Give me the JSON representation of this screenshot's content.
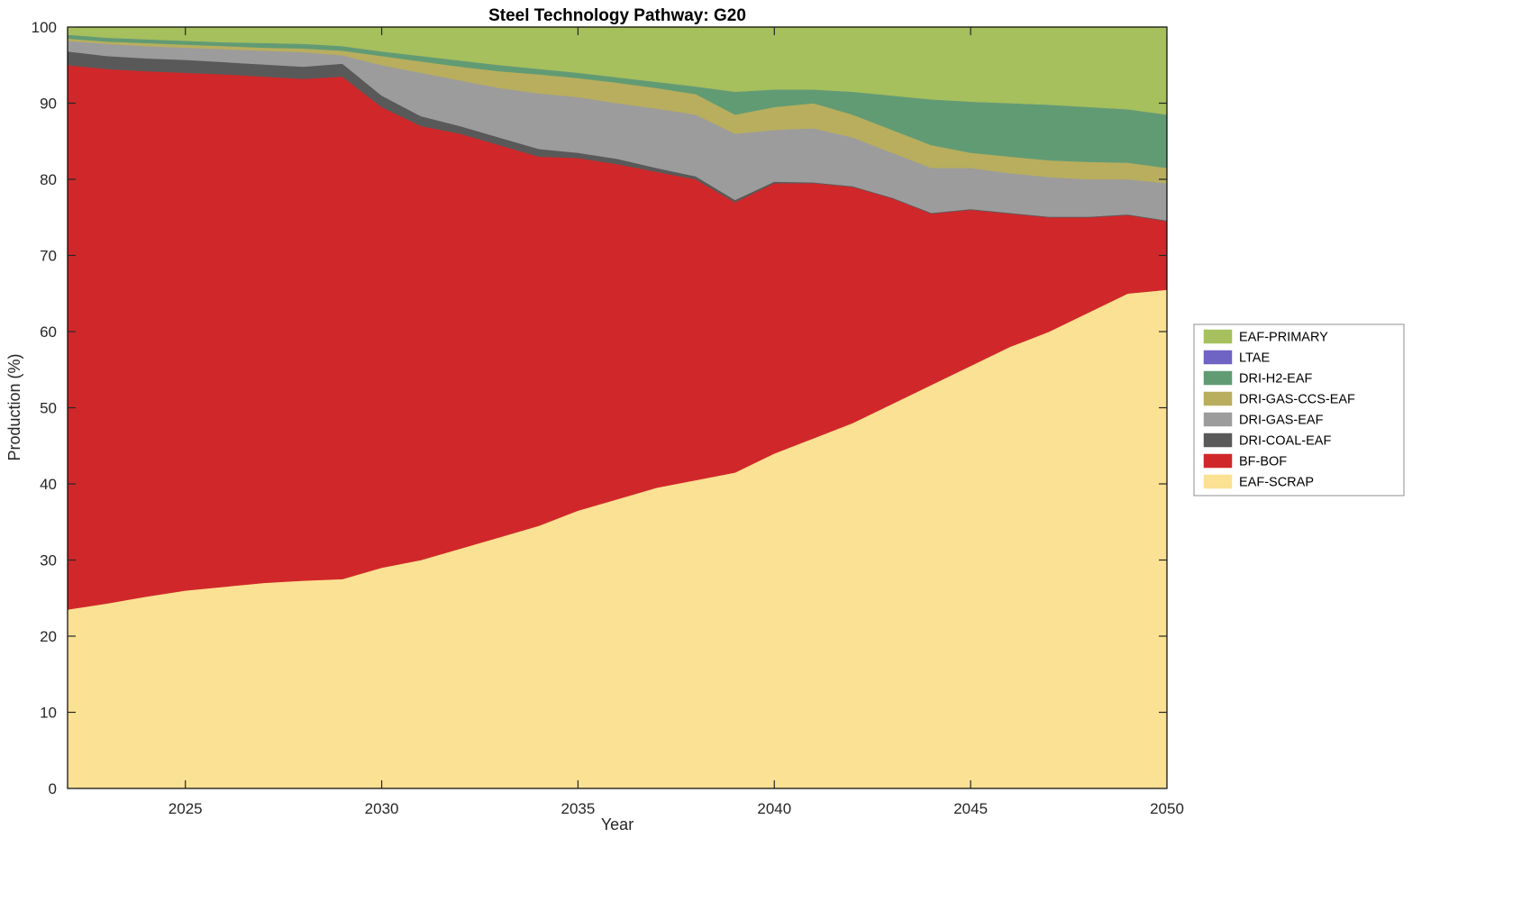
{
  "frame": {
    "background": "#ffffff",
    "axis_color": "#000000",
    "tick_color": "#262626",
    "legend_border_color": "#8f8f8f"
  },
  "chart_data": {
    "type": "area",
    "stacked": true,
    "title": "Steel Technology Pathway: G20",
    "xlabel": "Year",
    "ylabel": "Production (%)",
    "x_range": [
      2022,
      2050
    ],
    "ylim": [
      0,
      100
    ],
    "x_ticks": [
      2025,
      2030,
      2035,
      2040,
      2045,
      2050
    ],
    "y_ticks": [
      0,
      10,
      20,
      30,
      40,
      50,
      60,
      70,
      80,
      90,
      100
    ],
    "grid": false,
    "legend_position": "right-outside",
    "years": [
      2022,
      2023,
      2024,
      2025,
      2026,
      2027,
      2028,
      2029,
      2030,
      2031,
      2032,
      2033,
      2034,
      2035,
      2036,
      2037,
      2038,
      2039,
      2040,
      2041,
      2042,
      2043,
      2044,
      2045,
      2046,
      2047,
      2048,
      2049,
      2050
    ],
    "series": [
      {
        "name": "EAF-SCRAP",
        "color": "#fbe193",
        "values": [
          23.5,
          24.3,
          25.2,
          26.0,
          26.5,
          27.0,
          27.3,
          27.5,
          29.0,
          30.0,
          31.5,
          33.0,
          34.5,
          36.5,
          38.0,
          39.5,
          40.5,
          41.5,
          44.0,
          46.0,
          48.0,
          50.5,
          53.0,
          55.5,
          58.0,
          60.0,
          62.5,
          65.0,
          65.5
        ]
      },
      {
        "name": "BF-BOF",
        "color": "#d0282a",
        "values": [
          71.5,
          70.2,
          69.0,
          68.0,
          67.3,
          66.5,
          65.9,
          66.0,
          60.5,
          57.0,
          54.5,
          51.5,
          48.5,
          46.3,
          44.0,
          41.5,
          39.5,
          35.5,
          35.5,
          33.5,
          31.0,
          27.0,
          22.5,
          20.5,
          17.5,
          15.0,
          12.5,
          10.3,
          9.0
        ]
      },
      {
        "name": "DRI-COAL-EAF",
        "color": "#595959",
        "values": [
          1.8,
          1.7,
          1.7,
          1.7,
          1.6,
          1.6,
          1.6,
          1.7,
          1.5,
          1.3,
          1.0,
          1.0,
          1.0,
          0.7,
          0.7,
          0.5,
          0.4,
          0.3,
          0.2,
          0.1,
          0.1,
          0.1,
          0.1,
          0.1,
          0.1,
          0.1,
          0.1,
          0.1,
          0.1
        ]
      },
      {
        "name": "DRI-GAS-EAF",
        "color": "#9c9c9c",
        "values": [
          1.4,
          1.6,
          1.6,
          1.6,
          1.7,
          1.8,
          1.9,
          1.1,
          4.0,
          5.7,
          6.0,
          6.5,
          7.3,
          7.3,
          7.3,
          7.8,
          8.1,
          8.7,
          6.8,
          7.1,
          6.4,
          5.9,
          5.9,
          5.4,
          5.2,
          5.2,
          4.9,
          4.6,
          4.9
        ]
      },
      {
        "name": "DRI-GAS-CCS-EAF",
        "color": "#b8ae5e",
        "values": [
          0.3,
          0.3,
          0.4,
          0.4,
          0.4,
          0.4,
          0.5,
          0.6,
          1.2,
          1.5,
          1.8,
          2.2,
          2.5,
          2.5,
          2.7,
          2.7,
          2.7,
          2.5,
          3.0,
          3.3,
          3.0,
          3.0,
          3.0,
          2.0,
          2.2,
          2.2,
          2.3,
          2.2,
          2.0
        ]
      },
      {
        "name": "DRI-H2-EAF",
        "color": "#619b74",
        "values": [
          0.5,
          0.5,
          0.5,
          0.5,
          0.5,
          0.6,
          0.6,
          0.6,
          0.6,
          0.7,
          0.8,
          0.8,
          0.7,
          0.7,
          0.7,
          0.8,
          1.0,
          3.0,
          2.3,
          1.8,
          3.0,
          4.5,
          6.0,
          6.7,
          7.0,
          7.3,
          7.2,
          7.0,
          7.0
        ]
      },
      {
        "name": "LTAE",
        "color": "#6f63c4",
        "values": [
          0,
          0,
          0,
          0,
          0,
          0,
          0,
          0,
          0,
          0,
          0,
          0,
          0,
          0,
          0,
          0,
          0,
          0,
          0,
          0,
          0,
          0,
          0,
          0,
          0,
          0,
          0,
          0,
          0
        ]
      },
      {
        "name": "EAF-PRIMARY",
        "color": "#a5c05c",
        "values": [
          1.0,
          1.4,
          1.6,
          1.8,
          2.0,
          2.1,
          2.2,
          2.5,
          3.2,
          3.8,
          4.4,
          5.0,
          5.5,
          6.0,
          6.6,
          7.2,
          7.8,
          8.5,
          8.2,
          8.2,
          8.5,
          9.0,
          9.5,
          9.8,
          10.0,
          10.2,
          10.5,
          10.8,
          11.5
        ]
      }
    ],
    "legend_order_top_to_bottom": [
      "EAF-PRIMARY",
      "LTAE",
      "DRI-H2-EAF",
      "DRI-GAS-CCS-EAF",
      "DRI-GAS-EAF",
      "DRI-COAL-EAF",
      "BF-BOF",
      "EAF-SCRAP"
    ]
  }
}
